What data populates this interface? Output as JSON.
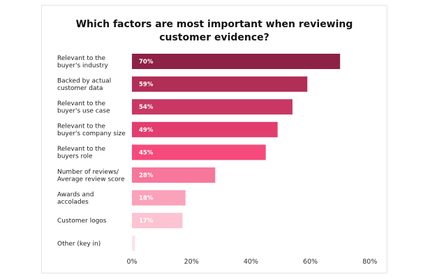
{
  "chart_data": {
    "type": "bar",
    "orientation": "horizontal",
    "title": "Which factors are most important when reviewing customer evidence?",
    "categories": [
      [
        "Relevant to the",
        "buyer's industry"
      ],
      [
        "Backed by actual",
        "customer data"
      ],
      [
        "Relevant to the",
        "buyer's use case"
      ],
      [
        "Relevant to the",
        "buyer's company size"
      ],
      [
        "Relevant to the",
        "buyers role"
      ],
      [
        "Number of reviews/",
        "Average review score"
      ],
      [
        "Awards and",
        "accolades"
      ],
      [
        "Customer logos"
      ],
      [
        "Other (key in)"
      ]
    ],
    "values": [
      70,
      59,
      54,
      49,
      45,
      28,
      18,
      17,
      1
    ],
    "value_labels": [
      "70%",
      "59%",
      "54%",
      "49%",
      "45%",
      "28%",
      "18%",
      "17%",
      ""
    ],
    "colors": [
      "#8e2146",
      "#b12e56",
      "#c93864",
      "#e33d6f",
      "#f64a7c",
      "#f7769b",
      "#fba2bb",
      "#fcc3d3",
      "#fde3ea"
    ],
    "xlim": [
      0,
      80
    ],
    "xticks": [
      "0%",
      "20%",
      "40%",
      "60%",
      "80%"
    ],
    "grid": false,
    "legend": "none"
  }
}
